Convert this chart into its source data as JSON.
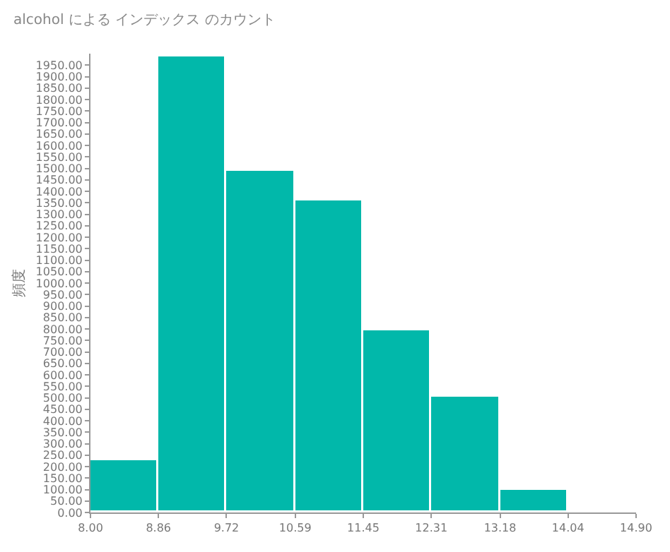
{
  "chart_data": {
    "type": "histogram",
    "title": "alcohol による インデックス のカウント",
    "ylabel": "頻度",
    "bins": [
      8.0,
      8.86,
      9.72,
      10.59,
      11.45,
      12.31,
      13.18,
      14.04
    ],
    "values": [
      227,
      1990,
      1490,
      1360,
      795,
      504,
      97
    ],
    "color": "#01b8aa",
    "xlim": [
      8.0,
      14.9
    ],
    "xticks": [
      {
        "value": 8.0,
        "label": "8.00"
      },
      {
        "value": 8.86,
        "label": "8.86"
      },
      {
        "value": 9.72,
        "label": "9.72"
      },
      {
        "value": 10.59,
        "label": "10.59"
      },
      {
        "value": 11.45,
        "label": "11.45"
      },
      {
        "value": 12.31,
        "label": "12.31"
      },
      {
        "value": 13.18,
        "label": "13.18"
      },
      {
        "value": 14.04,
        "label": "14.04"
      },
      {
        "value": 14.9,
        "label": "14.90"
      }
    ],
    "ylim": [
      0,
      2000
    ],
    "yticks": [
      {
        "value": 0,
        "label": "0.00"
      },
      {
        "value": 50,
        "label": "50.00"
      },
      {
        "value": 100,
        "label": "100.00"
      },
      {
        "value": 150,
        "label": "150.00"
      },
      {
        "value": 200,
        "label": "200.00"
      },
      {
        "value": 250,
        "label": "250.00"
      },
      {
        "value": 300,
        "label": "300.00"
      },
      {
        "value": 350,
        "label": "350.00"
      },
      {
        "value": 400,
        "label": "400.00"
      },
      {
        "value": 450,
        "label": "450.00"
      },
      {
        "value": 500,
        "label": "500.00"
      },
      {
        "value": 550,
        "label": "550.00"
      },
      {
        "value": 600,
        "label": "600.00"
      },
      {
        "value": 650,
        "label": "650.00"
      },
      {
        "value": 700,
        "label": "700.00"
      },
      {
        "value": 750,
        "label": "750.00"
      },
      {
        "value": 800,
        "label": "800.00"
      },
      {
        "value": 850,
        "label": "850.00"
      },
      {
        "value": 900,
        "label": "900.00"
      },
      {
        "value": 950,
        "label": "950.00"
      },
      {
        "value": 1000,
        "label": "1000.00"
      },
      {
        "value": 1050,
        "label": "1050.00"
      },
      {
        "value": 1100,
        "label": "1100.00"
      },
      {
        "value": 1150,
        "label": "1150.00"
      },
      {
        "value": 1200,
        "label": "1200.00"
      },
      {
        "value": 1250,
        "label": "1250.00"
      },
      {
        "value": 1300,
        "label": "1300.00"
      },
      {
        "value": 1350,
        "label": "1350.00"
      },
      {
        "value": 1400,
        "label": "1400.00"
      },
      {
        "value": 1450,
        "label": "1450.00"
      },
      {
        "value": 1500,
        "label": "1500.00"
      },
      {
        "value": 1550,
        "label": "1550.00"
      },
      {
        "value": 1600,
        "label": "1600.00"
      },
      {
        "value": 1650,
        "label": "1650.00"
      },
      {
        "value": 1700,
        "label": "1700.00"
      },
      {
        "value": 1750,
        "label": "1750.00"
      },
      {
        "value": 1800,
        "label": "1800.00"
      },
      {
        "value": 1850,
        "label": "1850.00"
      },
      {
        "value": 1900,
        "label": "1900.00"
      },
      {
        "value": 1950,
        "label": "1950.00"
      }
    ],
    "tick_labels": true
  }
}
